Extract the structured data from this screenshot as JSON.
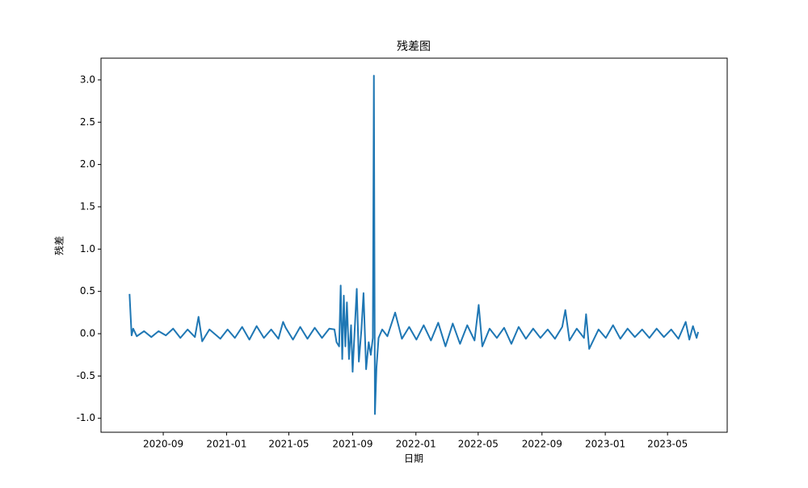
{
  "chart_data": {
    "type": "line",
    "title": "残差图",
    "x_label": "日期",
    "y_label": "残差",
    "x": [
      "2020-06-28",
      "2020-07-02",
      "2020-07-05",
      "2020-07-12",
      "2020-07-26",
      "2020-08-09",
      "2020-08-23",
      "2020-09-06",
      "2020-09-20",
      "2020-10-04",
      "2020-10-18",
      "2020-11-01",
      "2020-11-08",
      "2020-11-15",
      "2020-11-29",
      "2020-12-20",
      "2021-01-03",
      "2021-01-17",
      "2021-01-31",
      "2021-02-14",
      "2021-02-28",
      "2021-03-14",
      "2021-03-28",
      "2021-04-11",
      "2021-04-20",
      "2021-04-25",
      "2021-05-09",
      "2021-05-23",
      "2021-06-06",
      "2021-06-20",
      "2021-07-04",
      "2021-07-18",
      "2021-07-28",
      "2021-08-01",
      "2021-08-06",
      "2021-08-09",
      "2021-08-12",
      "2021-08-15",
      "2021-08-18",
      "2021-08-21",
      "2021-08-25",
      "2021-08-29",
      "2021-09-01",
      "2021-09-05",
      "2021-09-09",
      "2021-09-13",
      "2021-09-18",
      "2021-09-22",
      "2021-09-27",
      "2021-10-02",
      "2021-10-06",
      "2021-10-10",
      "2021-10-12",
      "2021-10-14",
      "2021-10-17",
      "2021-10-21",
      "2021-10-28",
      "2021-11-07",
      "2021-11-22",
      "2021-12-05",
      "2021-12-19",
      "2022-01-02",
      "2022-01-16",
      "2022-01-30",
      "2022-02-13",
      "2022-02-27",
      "2022-03-13",
      "2022-03-27",
      "2022-04-10",
      "2022-04-24",
      "2022-05-02",
      "2022-05-09",
      "2022-05-23",
      "2022-06-06",
      "2022-06-20",
      "2022-07-04",
      "2022-07-18",
      "2022-08-01",
      "2022-08-15",
      "2022-08-29",
      "2022-09-12",
      "2022-09-26",
      "2022-10-10",
      "2022-10-16",
      "2022-10-24",
      "2022-11-07",
      "2022-11-21",
      "2022-11-25",
      "2022-12-01",
      "2022-12-19",
      "2023-01-02",
      "2023-01-16",
      "2023-01-30",
      "2023-02-13",
      "2023-02-27",
      "2023-03-13",
      "2023-03-27",
      "2023-04-10",
      "2023-04-24",
      "2023-05-08",
      "2023-05-22",
      "2023-06-05",
      "2023-06-12",
      "2023-06-19",
      "2023-06-26",
      "2023-06-29"
    ],
    "series": [
      {
        "color": "#1f77b4",
        "values": [
          0.47,
          -0.02,
          0.06,
          -0.03,
          0.03,
          -0.04,
          0.03,
          -0.02,
          0.06,
          -0.05,
          0.05,
          -0.04,
          0.2,
          -0.09,
          0.05,
          -0.06,
          0.05,
          -0.05,
          0.08,
          -0.07,
          0.09,
          -0.05,
          0.05,
          -0.06,
          0.14,
          0.07,
          -0.07,
          0.08,
          -0.06,
          0.07,
          -0.05,
          0.06,
          0.05,
          -0.1,
          -0.15,
          0.57,
          -0.3,
          0.45,
          -0.15,
          0.37,
          -0.3,
          0.1,
          -0.45,
          0.05,
          0.53,
          -0.33,
          0.05,
          0.48,
          -0.42,
          -0.1,
          -0.25,
          -0.05,
          3.05,
          -0.95,
          -0.4,
          -0.05,
          0.05,
          -0.03,
          0.25,
          -0.06,
          0.08,
          -0.07,
          0.1,
          -0.08,
          0.13,
          -0.15,
          0.12,
          -0.12,
          0.1,
          -0.08,
          0.34,
          -0.15,
          0.06,
          -0.05,
          0.07,
          -0.12,
          0.08,
          -0.06,
          0.06,
          -0.05,
          0.05,
          -0.06,
          0.08,
          0.28,
          -0.08,
          0.06,
          -0.05,
          0.23,
          -0.18,
          0.05,
          -0.05,
          0.1,
          -0.06,
          0.06,
          -0.04,
          0.05,
          -0.05,
          0.06,
          -0.04,
          0.05,
          -0.06,
          0.14,
          -0.07,
          0.09,
          -0.05,
          0.02
        ]
      }
    ],
    "xlim": [
      "2020-05-04",
      "2023-08-24"
    ],
    "xticks": [
      {
        "value": "2020-09-01",
        "label": "2020-09"
      },
      {
        "value": "2021-01-01",
        "label": "2021-01"
      },
      {
        "value": "2021-05-01",
        "label": "2021-05"
      },
      {
        "value": "2021-09-01",
        "label": "2021-09"
      },
      {
        "value": "2022-01-01",
        "label": "2022-01"
      },
      {
        "value": "2022-05-01",
        "label": "2022-05"
      },
      {
        "value": "2022-09-01",
        "label": "2022-09"
      },
      {
        "value": "2023-01-01",
        "label": "2023-01"
      },
      {
        "value": "2023-05-01",
        "label": "2023-05"
      }
    ],
    "ylim": [
      -1.165,
      3.257
    ],
    "yticks": [
      {
        "value": -1,
        "label": "-1.0"
      },
      -0.5,
      {
        "value": 0,
        "label": "0.0"
      },
      0.5,
      {
        "value": 1,
        "label": "1.0"
      },
      1.5,
      {
        "value": 2,
        "label": "2.0"
      },
      2.5,
      {
        "value": 3,
        "label": "3.0"
      }
    ],
    "grid": false
  }
}
